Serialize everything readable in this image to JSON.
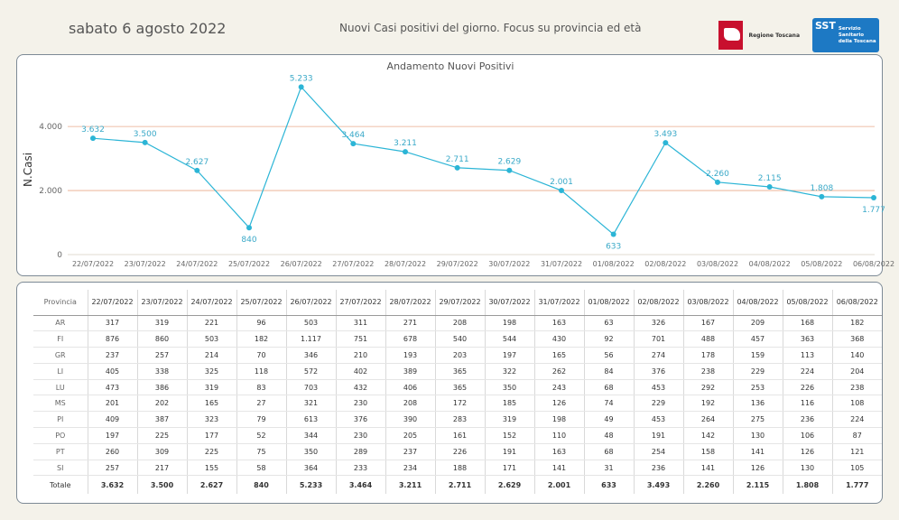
{
  "header": {
    "date": "sabato 6 agosto 2022",
    "title": "Nuovi Casi positivi del giorno. Focus su provincia ed età",
    "logo_regione": "Regione Toscana",
    "logo_sst_mark": "SST",
    "logo_sst_text": "Servizio Sanitario della Toscana"
  },
  "chart_data": {
    "type": "line",
    "title": "Andamento Nuovi Positivi",
    "xlabel": "",
    "ylabel": "N.Casi",
    "ylim": [
      0,
      5300
    ],
    "yticks": [
      0,
      2000,
      4000
    ],
    "ytick_labels": [
      "0",
      "2.000",
      "4.000"
    ],
    "grid": true,
    "categories": [
      "22/07/2022",
      "23/07/2022",
      "24/07/2022",
      "25/07/2022",
      "26/07/2022",
      "27/07/2022",
      "28/07/2022",
      "29/07/2022",
      "30/07/2022",
      "31/07/2022",
      "01/08/2022",
      "02/08/2022",
      "03/08/2022",
      "04/08/2022",
      "05/08/2022",
      "06/08/2022"
    ],
    "values": [
      3632,
      3500,
      2627,
      840,
      5233,
      3464,
      3211,
      2711,
      2629,
      2001,
      633,
      3493,
      2260,
      2115,
      1808,
      1777
    ],
    "value_labels": [
      "3.632",
      "3.500",
      "2.627",
      "840",
      "5.233",
      "3.464",
      "3.211",
      "2.711",
      "2.629",
      "2.001",
      "633",
      "3.493",
      "2.260",
      "2.115",
      "1.808",
      "1.777"
    ],
    "colors": {
      "line": "#2cb5d6",
      "grid": "#e8a88a",
      "axis": "#d9cfc0"
    }
  },
  "table": {
    "header_label": "Provincia",
    "dates": [
      "22/07/2022",
      "23/07/2022",
      "24/07/2022",
      "25/07/2022",
      "26/07/2022",
      "27/07/2022",
      "28/07/2022",
      "29/07/2022",
      "30/07/2022",
      "31/07/2022",
      "01/08/2022",
      "02/08/2022",
      "03/08/2022",
      "04/08/2022",
      "05/08/2022",
      "06/08/2022"
    ],
    "rows": [
      {
        "prov": "AR",
        "vals": [
          "317",
          "319",
          "221",
          "96",
          "503",
          "311",
          "271",
          "208",
          "198",
          "163",
          "63",
          "326",
          "167",
          "209",
          "168",
          "182"
        ]
      },
      {
        "prov": "FI",
        "vals": [
          "876",
          "860",
          "503",
          "182",
          "1.117",
          "751",
          "678",
          "540",
          "544",
          "430",
          "92",
          "701",
          "488",
          "457",
          "363",
          "368"
        ]
      },
      {
        "prov": "GR",
        "vals": [
          "237",
          "257",
          "214",
          "70",
          "346",
          "210",
          "193",
          "203",
          "197",
          "165",
          "56",
          "274",
          "178",
          "159",
          "113",
          "140"
        ]
      },
      {
        "prov": "LI",
        "vals": [
          "405",
          "338",
          "325",
          "118",
          "572",
          "402",
          "389",
          "365",
          "322",
          "262",
          "84",
          "376",
          "238",
          "229",
          "224",
          "204"
        ]
      },
      {
        "prov": "LU",
        "vals": [
          "473",
          "386",
          "319",
          "83",
          "703",
          "432",
          "406",
          "365",
          "350",
          "243",
          "68",
          "453",
          "292",
          "253",
          "226",
          "238"
        ]
      },
      {
        "prov": "MS",
        "vals": [
          "201",
          "202",
          "165",
          "27",
          "321",
          "230",
          "208",
          "172",
          "185",
          "126",
          "74",
          "229",
          "192",
          "136",
          "116",
          "108"
        ]
      },
      {
        "prov": "PI",
        "vals": [
          "409",
          "387",
          "323",
          "79",
          "613",
          "376",
          "390",
          "283",
          "319",
          "198",
          "49",
          "453",
          "264",
          "275",
          "236",
          "224"
        ]
      },
      {
        "prov": "PO",
        "vals": [
          "197",
          "225",
          "177",
          "52",
          "344",
          "230",
          "205",
          "161",
          "152",
          "110",
          "48",
          "191",
          "142",
          "130",
          "106",
          "87"
        ]
      },
      {
        "prov": "PT",
        "vals": [
          "260",
          "309",
          "225",
          "75",
          "350",
          "289",
          "237",
          "226",
          "191",
          "163",
          "68",
          "254",
          "158",
          "141",
          "126",
          "121"
        ]
      },
      {
        "prov": "SI",
        "vals": [
          "257",
          "217",
          "155",
          "58",
          "364",
          "233",
          "234",
          "188",
          "171",
          "141",
          "31",
          "236",
          "141",
          "126",
          "130",
          "105"
        ]
      }
    ],
    "total": {
      "prov": "Totale",
      "vals": [
        "3.632",
        "3.500",
        "2.627",
        "840",
        "5.233",
        "3.464",
        "3.211",
        "2.711",
        "2.629",
        "2.001",
        "633",
        "3.493",
        "2.260",
        "2.115",
        "1.808",
        "1.777"
      ]
    }
  }
}
